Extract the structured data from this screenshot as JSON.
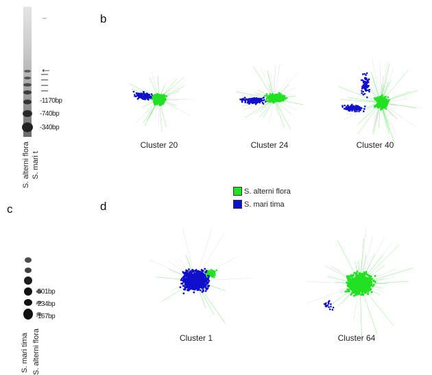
{
  "panels": {
    "a": {
      "letter": ""
    },
    "b": {
      "letter": "b"
    },
    "c": {
      "letter": "c"
    },
    "d": {
      "letter": "d"
    }
  },
  "gel_a": {
    "band_labels": [
      "-1170bp",
      "-740bp",
      "-340bp"
    ],
    "arrow": "←",
    "lanes": [
      "S. alterni flora",
      "S. mari t"
    ]
  },
  "gel_c": {
    "band_labels": [
      "-501bp",
      "-234bp",
      "-167bp"
    ],
    "lanes": [
      "S. mari tima",
      "S. alterni flora"
    ]
  },
  "clusters_b": [
    "Cluster 20",
    "Cluster 24",
    "Cluster 40"
  ],
  "clusters_d": [
    "Cluster 1",
    "Cluster 64"
  ],
  "legend": [
    {
      "label": "S. alterni flora",
      "color": "#22e022"
    },
    {
      "label": "S. mari tima",
      "color": "#1010cc"
    }
  ],
  "colors": {
    "green": "#22e022",
    "blue": "#1010cc"
  }
}
